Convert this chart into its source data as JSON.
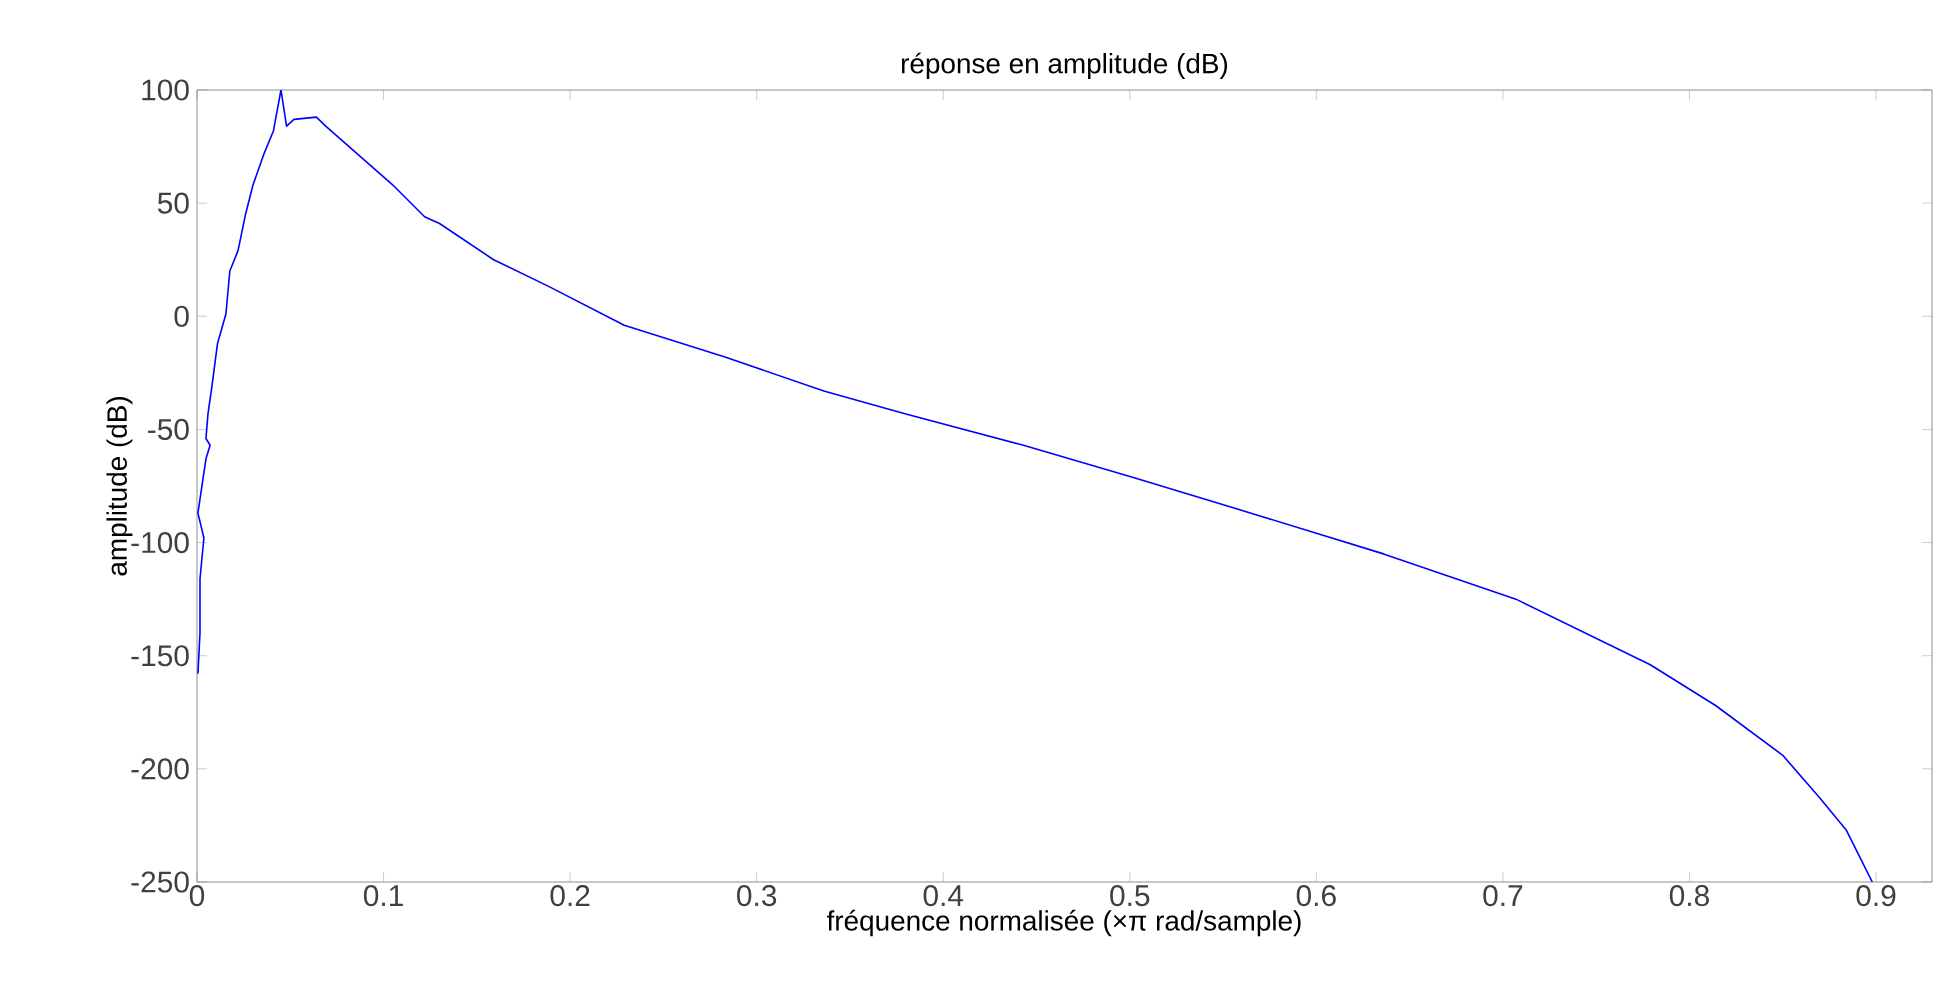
{
  "chart_data": {
    "type": "line",
    "title": "réponse en amplitude (dB)",
    "xlabel": "fréquence normalisée (×π rad/sample)",
    "ylabel": "amplitude (dB)",
    "xlim": [
      0,
      0.93
    ],
    "ylim": [
      -250,
      100
    ],
    "xticks": [
      0,
      0.1,
      0.2,
      0.3,
      0.4,
      0.5,
      0.6,
      0.7,
      0.8,
      0.9
    ],
    "yticks": [
      -250,
      -200,
      -150,
      -100,
      -50,
      0,
      50,
      100
    ],
    "grid": false,
    "marker": "none",
    "line_style": "solid",
    "series": [
      {
        "color": "#0000ff",
        "x": [
          0.0005,
          0.0016,
          0.0016,
          0.0037,
          0.0005,
          0.0048,
          0.007,
          0.0048,
          0.0059,
          0.008,
          0.011,
          0.0155,
          0.0176,
          0.022,
          0.026,
          0.03,
          0.036,
          0.041,
          0.045,
          0.048,
          0.052,
          0.064,
          0.069,
          0.087,
          0.105,
          0.122,
          0.13,
          0.159,
          0.189,
          0.229,
          0.283,
          0.336,
          0.379,
          0.443,
          0.501,
          0.565,
          0.636,
          0.707,
          0.779,
          0.814,
          0.85,
          0.87,
          0.884,
          0.898
        ],
        "values": [
          -158,
          -140,
          -116,
          -98,
          -87,
          -63,
          -57,
          -54,
          -43,
          -31,
          -12,
          1,
          20,
          29,
          45,
          58,
          72,
          82,
          100,
          84,
          87,
          88,
          84,
          71,
          58,
          44,
          41,
          25,
          13,
          -4,
          -18,
          -33,
          -43,
          -57,
          -71,
          -87,
          -105,
          -125,
          -154,
          -172,
          -194,
          -213,
          -227,
          -250
        ]
      }
    ]
  }
}
